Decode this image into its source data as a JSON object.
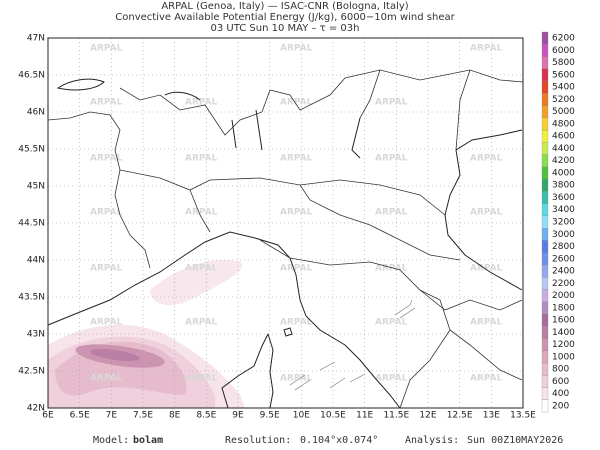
{
  "header": {
    "line1": "ARPAL (Genoa, Italy)  —  ISAC-CNR (Bologna, Italy)",
    "line2": "Convective Available Potential Energy (J/kg), 6000−10m wind shear",
    "line3": "03 UTC Sun 10 MAY  –  τ = 03h"
  },
  "map": {
    "watermark": "ARPAL",
    "lat_labels": [
      "47N",
      "46.5N",
      "46N",
      "45.5N",
      "45N",
      "44.5N",
      "44N",
      "43.5N",
      "43N",
      "42.5N",
      "42N"
    ],
    "lon_labels": [
      "6E",
      "6.5E",
      "7E",
      "7.5E",
      "8E",
      "8.5E",
      "9E",
      "9.5E",
      "10E",
      "10.5E",
      "11E",
      "11.5E",
      "12E",
      "12.5E",
      "13E",
      "13.5E"
    ]
  },
  "colorbar": {
    "levels": [
      200,
      400,
      600,
      800,
      1000,
      1200,
      1400,
      1600,
      1800,
      2000,
      2200,
      2400,
      2600,
      2800,
      3000,
      3200,
      3400,
      3600,
      3800,
      4000,
      4200,
      4400,
      4600,
      4800,
      5000,
      5200,
      5400,
      5600,
      5800,
      6000,
      6200
    ],
    "colors": [
      "#ffffff",
      "#f6e4ea",
      "#efd0dc",
      "#e6bccd",
      "#d9a8bd",
      "#cc94b0",
      "#bb7fa5",
      "#a86c9f",
      "#b48cc0",
      "#c6aee0",
      "#b9c6f0",
      "#90a8f0",
      "#6e8ef0",
      "#5a7ce8",
      "#6ab2f0",
      "#8ee0f4",
      "#5cd8e0",
      "#3ebcb0",
      "#2ea868",
      "#4cc040",
      "#8cdc50",
      "#c8ec50",
      "#f0f040",
      "#f4d030",
      "#f0a028",
      "#ec7824",
      "#e44828",
      "#d83050",
      "#e070b0",
      "#cc50c0",
      "#a050a0"
    ]
  },
  "footer": {
    "model_label": "Model:",
    "model": "bolam",
    "resolution_label": "Resolution:",
    "resolution": "0.104°x0.074°",
    "analysis_label": "Analysis:",
    "analysis": "Sun 00Z10MAY2026"
  }
}
